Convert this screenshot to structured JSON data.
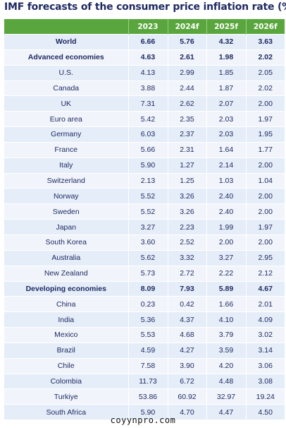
{
  "chart_data": {
    "type": "table",
    "title": "IMF forecasts of the consumer price inflation rate (%)",
    "columns": [
      "",
      "2023",
      "2024f",
      "2025f",
      "2026f"
    ],
    "rows": [
      {
        "label": "World",
        "values": [
          "6.66",
          "5.76",
          "4.32",
          "3.63"
        ],
        "bold": true
      },
      {
        "label": "Advanced economies",
        "values": [
          "4.63",
          "2.61",
          "1.98",
          "2.02"
        ],
        "bold": true
      },
      {
        "label": "U.S.",
        "values": [
          "4.13",
          "2.99",
          "1.85",
          "2.05"
        ],
        "bold": false
      },
      {
        "label": "Canada",
        "values": [
          "3.88",
          "2.44",
          "1.87",
          "2.02"
        ],
        "bold": false
      },
      {
        "label": "UK",
        "values": [
          "7.31",
          "2.62",
          "2.07",
          "2.00"
        ],
        "bold": false
      },
      {
        "label": "Euro area",
        "values": [
          "5.42",
          "2.35",
          "2.03",
          "1.97"
        ],
        "bold": false
      },
      {
        "label": "Germany",
        "values": [
          "6.03",
          "2.37",
          "2.03",
          "1.95"
        ],
        "bold": false
      },
      {
        "label": "France",
        "values": [
          "5.66",
          "2.31",
          "1.64",
          "1.77"
        ],
        "bold": false
      },
      {
        "label": "Italy",
        "values": [
          "5.90",
          "1.27",
          "2.14",
          "2.00"
        ],
        "bold": false
      },
      {
        "label": "Switzerland",
        "values": [
          "2.13",
          "1.25",
          "1.03",
          "1.04"
        ],
        "bold": false
      },
      {
        "label": "Norway",
        "values": [
          "5.52",
          "3.26",
          "2.40",
          "2.00"
        ],
        "bold": false
      },
      {
        "label": "Sweden",
        "values": [
          "5.52",
          "3.26",
          "2.40",
          "2.00"
        ],
        "bold": false
      },
      {
        "label": "Japan",
        "values": [
          "3.27",
          "2.23",
          "1.99",
          "1.97"
        ],
        "bold": false
      },
      {
        "label": "South Korea",
        "values": [
          "3.60",
          "2.52",
          "2.00",
          "2.00"
        ],
        "bold": false
      },
      {
        "label": "Australia",
        "values": [
          "5.62",
          "3.32",
          "3.27",
          "2.95"
        ],
        "bold": false
      },
      {
        "label": "New Zealand",
        "values": [
          "5.73",
          "2.72",
          "2.22",
          "2.12"
        ],
        "bold": false
      },
      {
        "label": "Developing economies",
        "values": [
          "8.09",
          "7.93",
          "5.89",
          "4.67"
        ],
        "bold": true
      },
      {
        "label": "China",
        "values": [
          "0.23",
          "0.42",
          "1.66",
          "2.01"
        ],
        "bold": false
      },
      {
        "label": "India",
        "values": [
          "5.36",
          "4.37",
          "4.10",
          "4.09"
        ],
        "bold": false
      },
      {
        "label": "Mexico",
        "values": [
          "5.53",
          "4.68",
          "3.79",
          "3.02"
        ],
        "bold": false
      },
      {
        "label": "Brazil",
        "values": [
          "4.59",
          "4.27",
          "3.59",
          "3.14"
        ],
        "bold": false
      },
      {
        "label": "Chile",
        "values": [
          "7.58",
          "3.90",
          "4.20",
          "3.06"
        ],
        "bold": false
      },
      {
        "label": "Colombia",
        "values": [
          "11.73",
          "6.72",
          "4.48",
          "3.08"
        ],
        "bold": false
      },
      {
        "label": "Turkiye",
        "values": [
          "53.86",
          "60.92",
          "32.97",
          "19.24"
        ],
        "bold": false
      },
      {
        "label": "South Africa",
        "values": [
          "5.90",
          "4.70",
          "4.47",
          "4.50"
        ],
        "bold": false
      }
    ]
  },
  "watermark": "coyynpro.com",
  "colors": {
    "header_bg": "#5aa63e",
    "title_text": "#1f2a63",
    "row_odd": "#e4edf8",
    "row_even": "#f1f5fb"
  }
}
